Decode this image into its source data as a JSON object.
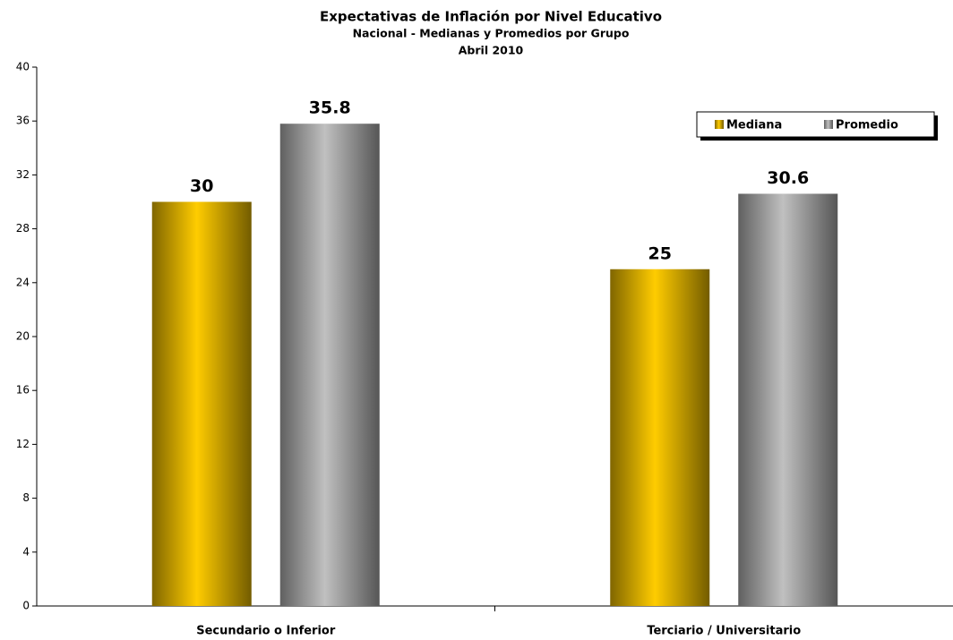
{
  "chart_data": {
    "type": "bar",
    "title": "Expectativas de Inflación por Nivel Educativo",
    "subtitle": "Nacional - Medianas y Promedios por Grupo",
    "date_label": "Abril 2010",
    "categories": [
      "Secundario o Inferior",
      "Terciario / Universitario"
    ],
    "series": [
      {
        "name": "Mediana",
        "color": "#FFCC00",
        "values": [
          30,
          25
        ]
      },
      {
        "name": "Promedio",
        "color": "#C0C0C0",
        "values": [
          35.8,
          30.6
        ]
      }
    ],
    "ylim": [
      0,
      40
    ],
    "yticks": [
      0,
      4,
      8,
      12,
      16,
      20,
      24,
      28,
      32,
      36,
      40
    ],
    "grid": false,
    "legend": "top-right"
  }
}
